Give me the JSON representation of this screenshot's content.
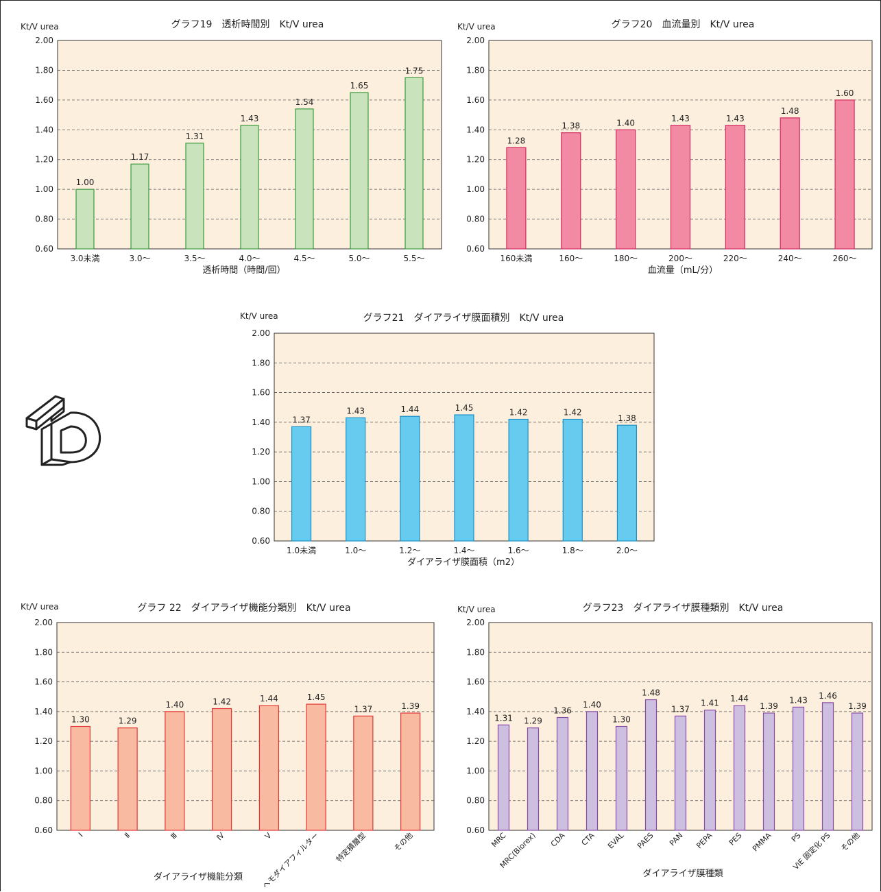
{
  "charts": [
    {
      "title": "グラフ19　透析時間別　Kt/V urea",
      "ylabel": "Kt/V urea",
      "xlabel": "透析時間（時間/回）",
      "fill": "#c9e3bd",
      "stroke": "#3a9a3c",
      "bg": "#fdefdd"
    },
    {
      "title": "グラフ20　血流量別　Kt/V urea",
      "ylabel": "Kt/V urea",
      "xlabel": "血流量（mL/分）",
      "fill": "#f18aa2",
      "stroke": "#d42a62",
      "bg": "#fdefdd"
    },
    {
      "title": "グラフ21　ダイアライザ膜面積別　Kt/V urea",
      "ylabel": "Kt/V urea",
      "xlabel": "ダイアライザ膜面積（m2）",
      "fill": "#66cbef",
      "stroke": "#1c8fc4",
      "bg": "#fdefdd"
    },
    {
      "title": "グラフ 22　ダイアライザ機能分類別　Kt/V urea",
      "ylabel": "Kt/V urea",
      "xlabel": "ダイアライザ機能分類",
      "fill": "#f8bba1",
      "stroke": "#e43535",
      "bg": "#fdefdd"
    },
    {
      "title": "グラフ23　ダイアライザ膜種類別　Kt/V urea",
      "ylabel": "Kt/V urea",
      "xlabel": "ダイアライザ膜種類",
      "fill": "#cdbfe0",
      "stroke": "#8a4da6",
      "bg": "#fdefdd"
    }
  ],
  "logo": {
    "icon": "td-logo-icon"
  },
  "chart_data": [
    {
      "type": "bar",
      "title": "グラフ19　透析時間別　Kt/V urea",
      "xlabel": "透析時間（時間/回）",
      "ylabel": "Kt/V urea",
      "ylim": [
        0.6,
        2.0
      ],
      "yticks": [
        "0.60",
        "0.80",
        "1.00",
        "1.20",
        "1.40",
        "1.60",
        "1.80",
        "2.00"
      ],
      "grid": true,
      "categories": [
        "3.0未満",
        "3.0〜",
        "3.5〜",
        "4.0〜",
        "4.5〜",
        "5.0〜",
        "5.5〜"
      ],
      "values": [
        1.0,
        1.17,
        1.31,
        1.43,
        1.54,
        1.65,
        1.75
      ],
      "labels": [
        "1.00",
        "1.17",
        "1.31",
        "1.43",
        "1.54",
        "1.65",
        "1.75"
      ]
    },
    {
      "type": "bar",
      "title": "グラフ20　血流量別　Kt/V urea",
      "xlabel": "血流量（mL/分）",
      "ylabel": "Kt/V urea",
      "ylim": [
        0.6,
        2.0
      ],
      "yticks": [
        "0.60",
        "0.80",
        "1.00",
        "1.20",
        "1.40",
        "1.60",
        "1.80",
        "2.00"
      ],
      "grid": true,
      "categories": [
        "160未満",
        "160〜",
        "180〜",
        "200〜",
        "220〜",
        "240〜",
        "260〜"
      ],
      "values": [
        1.28,
        1.38,
        1.4,
        1.43,
        1.43,
        1.48,
        1.6
      ],
      "labels": [
        "1.28",
        "1.38",
        "1.40",
        "1.43",
        "1.43",
        "1.48",
        "1.60"
      ]
    },
    {
      "type": "bar",
      "title": "グラフ21　ダイアライザ膜面積別　Kt/V urea",
      "xlabel": "ダイアライザ膜面積（m2）",
      "ylabel": "Kt/V urea",
      "ylim": [
        0.6,
        2.0
      ],
      "yticks": [
        "0.60",
        "0.80",
        "1.00",
        "1.20",
        "1.40",
        "1.60",
        "1.80",
        "2.00"
      ],
      "grid": true,
      "categories": [
        "1.0未満",
        "1.0〜",
        "1.2〜",
        "1.4〜",
        "1.6〜",
        "1.8〜",
        "2.0〜"
      ],
      "values": [
        1.37,
        1.43,
        1.44,
        1.45,
        1.42,
        1.42,
        1.38
      ],
      "labels": [
        "1.37",
        "1.43",
        "1.44",
        "1.45",
        "1.42",
        "1.42",
        "1.38"
      ]
    },
    {
      "type": "bar",
      "title": "グラフ 22　ダイアライザ機能分類別　Kt/V urea",
      "xlabel": "ダイアライザ機能分類",
      "ylabel": "Kt/V urea",
      "ylim": [
        0.6,
        2.0
      ],
      "yticks": [
        "0.60",
        "0.80",
        "1.00",
        "1.20",
        "1.40",
        "1.60",
        "1.80",
        "2.00"
      ],
      "grid": true,
      "categories": [
        "Ⅰ",
        "Ⅱ",
        "Ⅲ",
        "Ⅳ",
        "Ⅴ",
        "ヘモダイアフィルター",
        "特定積層型",
        "その他"
      ],
      "values": [
        1.3,
        1.29,
        1.4,
        1.42,
        1.44,
        1.45,
        1.37,
        1.39
      ],
      "labels": [
        "1.30",
        "1.29",
        "1.40",
        "1.42",
        "1.44",
        "1.45",
        "1.37",
        "1.39"
      ]
    },
    {
      "type": "bar",
      "title": "グラフ23　ダイアライザ膜種類別　Kt/V urea",
      "xlabel": "ダイアライザ膜種類",
      "ylabel": "Kt/V urea",
      "ylim": [
        0.6,
        2.0
      ],
      "yticks": [
        "0.60",
        "0.80",
        "1.00",
        "1.20",
        "1.40",
        "1.60",
        "1.80",
        "2.00"
      ],
      "grid": true,
      "categories": [
        "MRC",
        "MRC(Biorex)",
        "CDA",
        "CTA",
        "EVAL",
        "PAES",
        "PAN",
        "PEPA",
        "PES",
        "PMMA",
        "PS",
        "ViE 固定化 PS",
        "その他"
      ],
      "values": [
        1.31,
        1.29,
        1.36,
        1.4,
        1.3,
        1.48,
        1.37,
        1.41,
        1.44,
        1.39,
        1.43,
        1.46,
        1.39
      ],
      "labels": [
        "1.31",
        "1.29",
        "1.36",
        "1.40",
        "1.30",
        "1.48",
        "1.37",
        "1.41",
        "1.44",
        "1.39",
        "1.43",
        "1.46",
        "1.39"
      ]
    }
  ]
}
